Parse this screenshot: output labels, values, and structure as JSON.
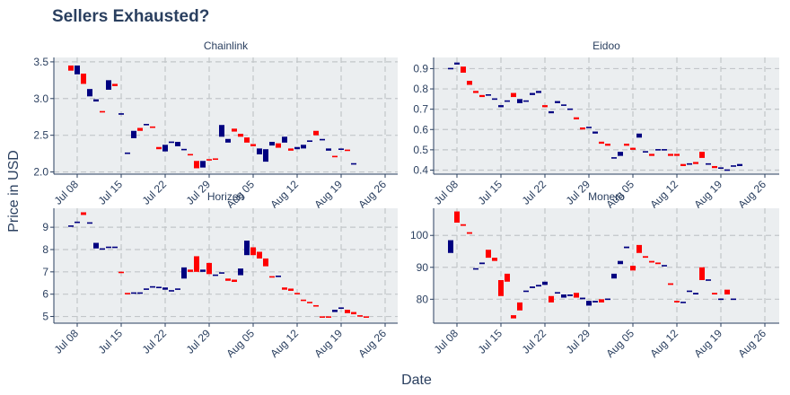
{
  "title": "Sellers Exhausted?",
  "xlabel": "Date",
  "ylabel": "Price in USD",
  "colors": {
    "increasing": "#000080",
    "decreasing": "#ff0000",
    "panel_bg": "#ebeef0",
    "grid": "#c2c6c9",
    "axis": "#2a3f5f",
    "text": "#2a3f5f"
  },
  "chart_data": [
    {
      "type": "candlestick",
      "title": "Chainlink",
      "x_ticks": [
        "Jul 08",
        "Jul 15",
        "Jul 22",
        "Jul 29",
        "Aug 05",
        "Aug 12",
        "Aug 19",
        "Aug 26"
      ],
      "y_ticks": [
        2.0,
        2.5,
        3.0,
        3.5
      ],
      "ylim": [
        1.97,
        3.56
      ],
      "dates": [
        "Jul 07",
        "Jul 08",
        "Jul 09",
        "Jul 10",
        "Jul 11",
        "Jul 12",
        "Jul 13",
        "Jul 14",
        "Jul 15",
        "Jul 16",
        "Jul 17",
        "Jul 18",
        "Jul 19",
        "Jul 20",
        "Jul 21",
        "Jul 22",
        "Jul 23",
        "Jul 24",
        "Jul 25",
        "Jul 26",
        "Jul 27",
        "Jul 28",
        "Jul 29",
        "Jul 30",
        "Jul 31",
        "Aug 01",
        "Aug 02",
        "Aug 03",
        "Aug 04",
        "Aug 05",
        "Aug 06",
        "Aug 07",
        "Aug 08",
        "Aug 09",
        "Aug 10",
        "Aug 11",
        "Aug 12",
        "Aug 13",
        "Aug 14",
        "Aug 15",
        "Aug 16",
        "Aug 17",
        "Aug 18",
        "Aug 19",
        "Aug 20",
        "Aug 21",
        "Aug 22",
        "Aug 23",
        "Aug 24",
        "Aug 25",
        "Aug 26",
        "Aug 27",
        "Aug 28"
      ],
      "open": [
        3.45,
        3.33,
        3.34,
        3.03,
        2.96,
        2.83,
        3.12,
        3.2,
        2.78,
        2.25,
        2.46,
        2.6,
        2.64,
        2.62,
        2.34,
        2.28,
        2.4,
        2.35,
        2.3,
        2.24,
        2.15,
        2.06,
        2.17,
        2.18,
        2.48,
        2.4,
        2.59,
        2.52,
        2.47,
        2.38,
        2.24,
        2.14,
        2.36,
        2.39,
        2.4,
        2.32,
        2.31,
        2.32,
        2.41,
        2.56,
        2.43,
        2.29,
        2.22,
        2.31,
        2.3,
        2.11,
        2.1,
        2.1,
        2.1,
        2.1,
        2.1,
        2.1,
        2.1
      ],
      "close": [
        3.38,
        3.45,
        3.2,
        3.13,
        2.99,
        2.81,
        3.25,
        3.17,
        2.8,
        2.26,
        2.56,
        2.56,
        2.65,
        2.6,
        2.31,
        2.37,
        2.41,
        2.41,
        2.31,
        2.23,
        2.05,
        2.15,
        2.16,
        2.17,
        2.64,
        2.45,
        2.55,
        2.48,
        2.4,
        2.35,
        2.32,
        2.31,
        2.41,
        2.33,
        2.48,
        2.29,
        2.34,
        2.37,
        2.43,
        2.5,
        2.45,
        2.32,
        2.2,
        2.31,
        2.29,
        2.11,
        2.1,
        2.1,
        2.1,
        2.1,
        2.1,
        2.1,
        2.1
      ],
      "present": [
        1,
        1,
        1,
        1,
        1,
        1,
        1,
        1,
        1,
        1,
        1,
        1,
        1,
        1,
        1,
        1,
        1,
        1,
        1,
        1,
        1,
        1,
        1,
        1,
        1,
        1,
        1,
        1,
        1,
        1,
        1,
        1,
        1,
        1,
        1,
        1,
        1,
        1,
        1,
        1,
        1,
        1,
        1,
        1,
        1,
        1,
        0,
        0,
        0,
        0,
        0,
        0,
        0
      ]
    },
    {
      "type": "candlestick",
      "title": "Eidoo",
      "x_ticks": [
        "Jul 08",
        "Jul 15",
        "Jul 22",
        "Jul 29",
        "Aug 05",
        "Aug 12",
        "Aug 19",
        "Aug 26"
      ],
      "y_ticks": [
        0.4,
        0.5,
        0.6,
        0.7,
        0.8,
        0.9
      ],
      "ylim": [
        0.38,
        0.955
      ],
      "dates": [
        "Jul 07",
        "Jul 08",
        "Jul 09",
        "Jul 10",
        "Jul 11",
        "Jul 12",
        "Jul 13",
        "Jul 14",
        "Jul 15",
        "Jul 16",
        "Jul 17",
        "Jul 18",
        "Jul 19",
        "Jul 20",
        "Jul 21",
        "Jul 22",
        "Jul 23",
        "Jul 24",
        "Jul 25",
        "Jul 26",
        "Jul 27",
        "Jul 28",
        "Jul 29",
        "Jul 30",
        "Jul 31",
        "Aug 01",
        "Aug 02",
        "Aug 03",
        "Aug 04",
        "Aug 05",
        "Aug 06",
        "Aug 07",
        "Aug 08",
        "Aug 09",
        "Aug 10",
        "Aug 11",
        "Aug 12",
        "Aug 13",
        "Aug 14",
        "Aug 15",
        "Aug 16",
        "Aug 17",
        "Aug 18",
        "Aug 19",
        "Aug 20",
        "Aug 21",
        "Aug 22",
        "Aug 23",
        "Aug 24",
        "Aug 25",
        "Aug 26",
        "Aug 27",
        "Aug 28"
      ],
      "open": [
        0.9,
        0.92,
        0.91,
        0.84,
        0.79,
        0.77,
        0.77,
        0.75,
        0.71,
        0.74,
        0.78,
        0.73,
        0.74,
        0.77,
        0.78,
        0.72,
        0.68,
        0.73,
        0.72,
        0.7,
        0.66,
        0.61,
        0.61,
        0.58,
        0.54,
        0.53,
        0.46,
        0.47,
        0.53,
        0.51,
        0.56,
        0.49,
        0.48,
        0.5,
        0.5,
        0.48,
        0.48,
        0.43,
        0.43,
        0.44,
        0.49,
        0.43,
        0.42,
        0.41,
        0.4,
        0.42,
        0.42,
        0.42,
        0.42,
        0.42,
        0.42,
        0.42,
        0.42
      ],
      "close": [
        0.9,
        0.93,
        0.88,
        0.82,
        0.78,
        0.76,
        0.77,
        0.75,
        0.72,
        0.74,
        0.76,
        0.75,
        0.74,
        0.78,
        0.79,
        0.71,
        0.69,
        0.74,
        0.72,
        0.7,
        0.65,
        0.6,
        0.61,
        0.59,
        0.53,
        0.52,
        0.46,
        0.49,
        0.52,
        0.5,
        0.58,
        0.49,
        0.47,
        0.5,
        0.5,
        0.47,
        0.47,
        0.42,
        0.43,
        0.43,
        0.46,
        0.43,
        0.41,
        0.41,
        0.4,
        0.42,
        0.43,
        0.42,
        0.42,
        0.42,
        0.42,
        0.42,
        0.42
      ],
      "present": [
        1,
        1,
        1,
        1,
        1,
        1,
        1,
        1,
        1,
        1,
        1,
        1,
        1,
        1,
        1,
        1,
        1,
        1,
        1,
        1,
        1,
        1,
        1,
        1,
        1,
        1,
        1,
        1,
        1,
        1,
        1,
        1,
        1,
        1,
        1,
        1,
        1,
        1,
        1,
        1,
        1,
        1,
        1,
        1,
        1,
        1,
        1,
        0,
        0,
        0,
        0,
        0,
        0
      ]
    },
    {
      "type": "candlestick",
      "title": "Horizen",
      "x_ticks": [
        "Jul 08",
        "Jul 15",
        "Jul 22",
        "Jul 29",
        "Aug 05",
        "Aug 12",
        "Aug 19",
        "Aug 26"
      ],
      "y_ticks": [
        5,
        6,
        7,
        8,
        9
      ],
      "ylim": [
        4.7,
        9.85
      ],
      "dates": [
        "Jul 07",
        "Jul 08",
        "Jul 09",
        "Jul 10",
        "Jul 11",
        "Jul 12",
        "Jul 13",
        "Jul 14",
        "Jul 15",
        "Jul 16",
        "Jul 17",
        "Jul 18",
        "Jul 19",
        "Jul 20",
        "Jul 21",
        "Jul 22",
        "Jul 23",
        "Jul 24",
        "Jul 25",
        "Jul 26",
        "Jul 27",
        "Jul 28",
        "Jul 29",
        "Jul 30",
        "Jul 31",
        "Aug 01",
        "Aug 02",
        "Aug 03",
        "Aug 04",
        "Aug 05",
        "Aug 06",
        "Aug 07",
        "Aug 08",
        "Aug 09",
        "Aug 10",
        "Aug 11",
        "Aug 12",
        "Aug 13",
        "Aug 14",
        "Aug 15",
        "Aug 16",
        "Aug 17",
        "Aug 18",
        "Aug 19",
        "Aug 20",
        "Aug 21",
        "Aug 22",
        "Aug 23",
        "Aug 24",
        "Aug 25",
        "Aug 26",
        "Aug 27",
        "Aug 28"
      ],
      "open": [
        9.05,
        9.22,
        9.67,
        9.18,
        8.05,
        8.0,
        8.1,
        8.1,
        7.0,
        6.05,
        6.05,
        6.05,
        6.2,
        6.3,
        6.3,
        6.2,
        6.15,
        6.2,
        6.7,
        7.1,
        7.7,
        7.0,
        7.4,
        6.85,
        6.95,
        6.7,
        6.65,
        6.85,
        7.75,
        8.1,
        7.9,
        7.6,
        6.8,
        6.8,
        6.3,
        6.25,
        6.05,
        5.75,
        5.65,
        5.5,
        5.0,
        5.0,
        5.2,
        5.35,
        5.3,
        5.2,
        5.05,
        5.0,
        5.0,
        5.0,
        5.0,
        5.0,
        5.0
      ],
      "close": [
        9.05,
        9.22,
        9.55,
        9.2,
        8.3,
        8.05,
        8.1,
        8.1,
        6.95,
        6.0,
        6.05,
        6.05,
        6.25,
        6.35,
        6.3,
        6.3,
        6.15,
        6.25,
        7.2,
        7.0,
        7.0,
        7.1,
        6.9,
        6.85,
        6.95,
        6.6,
        6.55,
        7.15,
        8.4,
        7.75,
        7.6,
        7.25,
        6.75,
        6.8,
        6.2,
        6.15,
        6.0,
        5.7,
        5.6,
        5.45,
        4.95,
        4.95,
        5.3,
        5.4,
        5.15,
        5.1,
        5.0,
        4.95,
        5.0,
        5.0,
        5.0,
        5.0,
        5.0
      ],
      "present": [
        1,
        1,
        1,
        1,
        1,
        1,
        1,
        1,
        1,
        1,
        1,
        1,
        1,
        1,
        1,
        1,
        1,
        1,
        1,
        1,
        1,
        1,
        1,
        1,
        1,
        1,
        1,
        1,
        1,
        1,
        1,
        1,
        1,
        1,
        1,
        1,
        1,
        1,
        1,
        1,
        1,
        1,
        1,
        1,
        1,
        1,
        1,
        1,
        0,
        0,
        0,
        0,
        0
      ]
    },
    {
      "type": "candlestick",
      "title": "Monero",
      "x_ticks": [
        "Jul 08",
        "Jul 15",
        "Jul 22",
        "Jul 29",
        "Aug 05",
        "Aug 12",
        "Aug 19",
        "Aug 26"
      ],
      "y_ticks": [
        80,
        90,
        100
      ],
      "ylim": [
        72.5,
        108.5
      ],
      "dates": [
        "Jul 07",
        "Jul 08",
        "Jul 09",
        "Jul 10",
        "Jul 11",
        "Jul 12",
        "Jul 13",
        "Jul 14",
        "Jul 15",
        "Jul 16",
        "Jul 17",
        "Jul 18",
        "Jul 19",
        "Jul 20",
        "Jul 21",
        "Jul 22",
        "Jul 23",
        "Jul 24",
        "Jul 25",
        "Jul 26",
        "Jul 27",
        "Jul 28",
        "Jul 29",
        "Jul 30",
        "Jul 31",
        "Aug 01",
        "Aug 02",
        "Aug 03",
        "Aug 04",
        "Aug 05",
        "Aug 06",
        "Aug 07",
        "Aug 08",
        "Aug 09",
        "Aug 10",
        "Aug 11",
        "Aug 12",
        "Aug 13",
        "Aug 14",
        "Aug 15",
        "Aug 16",
        "Aug 17",
        "Aug 18",
        "Aug 19",
        "Aug 20",
        "Aug 21",
        "Aug 22",
        "Aug 23",
        "Aug 24",
        "Aug 25",
        "Aug 26",
        "Aug 27",
        "Aug 28"
      ],
      "open": [
        94.5,
        107.5,
        103.5,
        101.0,
        89.5,
        91.0,
        95.5,
        93.0,
        86.0,
        88.0,
        75.0,
        79.0,
        82.5,
        83.5,
        84.0,
        84.5,
        81.0,
        82.0,
        80.5,
        81.0,
        82.0,
        80.0,
        78.0,
        79.0,
        80.0,
        80.0,
        86.5,
        91.0,
        96.0,
        90.5,
        97.0,
        93.5,
        92.0,
        91.5,
        90.5,
        85.0,
        79.5,
        79.0,
        82.5,
        81.5,
        90.0,
        86.0,
        82.0,
        80.0,
        83.0,
        80.0,
        80.0,
        80.0,
        80.0,
        80.0,
        80.0,
        80.0,
        80.0
      ],
      "close": [
        98.5,
        104.0,
        103.0,
        100.5,
        89.5,
        91.5,
        93.0,
        92.0,
        81.0,
        85.5,
        74.0,
        76.5,
        82.5,
        84.0,
        84.5,
        85.5,
        79.0,
        82.0,
        81.5,
        81.5,
        80.5,
        80.5,
        79.5,
        79.5,
        79.0,
        80.0,
        88.0,
        92.0,
        96.5,
        89.0,
        94.5,
        93.0,
        91.5,
        91.0,
        90.5,
        84.5,
        79.0,
        79.0,
        82.5,
        82.0,
        86.0,
        86.0,
        81.5,
        80.0,
        81.5,
        80.0,
        80.0,
        80.0,
        80.0,
        80.0,
        80.0,
        80.0,
        80.0
      ],
      "present": [
        1,
        1,
        1,
        1,
        1,
        1,
        1,
        1,
        1,
        1,
        1,
        1,
        1,
        1,
        1,
        1,
        1,
        1,
        1,
        1,
        1,
        1,
        1,
        1,
        1,
        1,
        1,
        1,
        1,
        1,
        1,
        1,
        1,
        1,
        1,
        1,
        1,
        1,
        1,
        1,
        1,
        1,
        1,
        1,
        1,
        1,
        0,
        0,
        0,
        0,
        0,
        0,
        0
      ]
    }
  ]
}
